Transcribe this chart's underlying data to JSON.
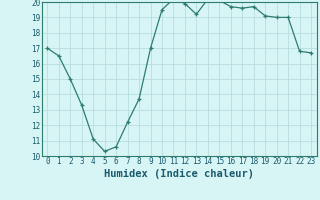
{
  "x": [
    0,
    1,
    2,
    3,
    4,
    5,
    6,
    7,
    8,
    9,
    10,
    11,
    12,
    13,
    14,
    15,
    16,
    17,
    18,
    19,
    20,
    21,
    22,
    23
  ],
  "y": [
    17.0,
    16.5,
    15.0,
    13.3,
    11.1,
    10.3,
    10.6,
    12.2,
    13.7,
    17.0,
    19.5,
    20.2,
    19.9,
    19.2,
    20.2,
    20.1,
    19.7,
    19.6,
    19.7,
    19.1,
    19.0,
    19.0,
    16.8,
    16.7
  ],
  "xlabel": "Humidex (Indice chaleur)",
  "ylim": [
    10,
    20
  ],
  "xlim_min": -0.5,
  "xlim_max": 23.5,
  "yticks": [
    10,
    11,
    12,
    13,
    14,
    15,
    16,
    17,
    18,
    19,
    20
  ],
  "xticks": [
    0,
    1,
    2,
    3,
    4,
    5,
    6,
    7,
    8,
    9,
    10,
    11,
    12,
    13,
    14,
    15,
    16,
    17,
    18,
    19,
    20,
    21,
    22,
    23
  ],
  "line_color": "#2d7d6e",
  "marker": "+",
  "bg_color": "#d8f5f5",
  "grid_color": "#b8dede",
  "label_color": "#1a5a6e",
  "tick_label_fontsize": 5.5,
  "xlabel_fontsize": 7.5
}
